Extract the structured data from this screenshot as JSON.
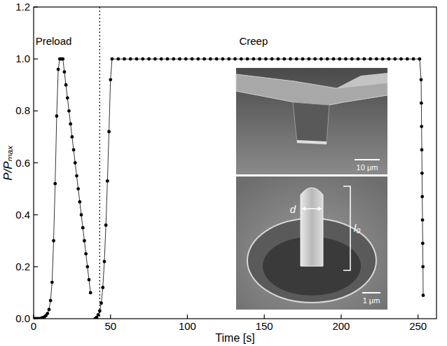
{
  "chart_data": {
    "type": "scatter",
    "x_label": "Time [s]",
    "y_label": "P/Pₘₐₓ",
    "xlim": [
      0,
      262
    ],
    "ylim": [
      0,
      1.2
    ],
    "xticks": [
      0,
      50,
      100,
      150,
      200,
      250
    ],
    "yticks": [
      {
        "value": 0,
        "label": "0.0"
      },
      0.2,
      0.4,
      0.6,
      0.8,
      {
        "value": 1,
        "label": "1.0"
      },
      1.2
    ],
    "grid": false,
    "series": [
      {
        "color": "#000000",
        "marker": "circle",
        "line_style": "solid",
        "x": [
          0,
          1,
          2,
          3,
          4,
          5,
          6,
          7,
          8,
          9,
          10,
          11,
          12,
          13,
          14,
          15,
          16,
          17,
          18,
          19,
          20,
          21,
          22,
          23,
          24,
          25,
          26,
          27,
          28,
          29,
          30,
          31,
          32,
          33,
          34,
          35,
          36,
          37
        ],
        "values": [
          0,
          0,
          0,
          0,
          0,
          0.002,
          0.004,
          0.007,
          0.012,
          0.02,
          0.035,
          0.07,
          0.14,
          0.3,
          0.52,
          0.78,
          0.96,
          1.0,
          1.0,
          1.0,
          0.95,
          0.9,
          0.85,
          0.8,
          0.75,
          0.7,
          0.65,
          0.6,
          0.55,
          0.5,
          0.45,
          0.4,
          0.35,
          0.3,
          0.25,
          0.2,
          0.15,
          0.1
        ]
      },
      {
        "color": "#000000",
        "marker": "circle",
        "line_style": "solid",
        "x": [
          40,
          41,
          42,
          43,
          44,
          45,
          46,
          47,
          48,
          49,
          50,
          51,
          55,
          59,
          63,
          67,
          71,
          75,
          79,
          83,
          87,
          91,
          95,
          99,
          103,
          107,
          111,
          115,
          119,
          123,
          127,
          131,
          135,
          139,
          143,
          147,
          151,
          155,
          159,
          163,
          167,
          171,
          175,
          179,
          183,
          187,
          191,
          195,
          199,
          203,
          207,
          211,
          215,
          219,
          223,
          227,
          231,
          235,
          239,
          243,
          247,
          251,
          252.0,
          252.15,
          252.3,
          252.45,
          252.6,
          252.75,
          252.9,
          253.05,
          253.2,
          253.35
        ],
        "values": [
          0,
          0.005,
          0.015,
          0.03,
          0.06,
          0.12,
          0.22,
          0.36,
          0.53,
          0.72,
          0.92,
          1.0,
          1.0,
          1.0,
          1.0,
          1.0,
          1.0,
          1.0,
          1.0,
          1.0,
          1.0,
          1.0,
          1.0,
          1.0,
          1.0,
          1.0,
          1.0,
          1.0,
          1.0,
          1.0,
          1.0,
          1.0,
          1.0,
          1.0,
          1.0,
          1.0,
          1.0,
          1.0,
          1.0,
          1.0,
          1.0,
          1.0,
          1.0,
          1.0,
          1.0,
          1.0,
          1.0,
          1.0,
          1.0,
          1.0,
          1.0,
          1.0,
          1.0,
          1.0,
          1.0,
          1.0,
          1.0,
          1.0,
          1.0,
          1.0,
          1.0,
          1.0,
          0.92,
          0.83,
          0.74,
          0.65,
          0.56,
          0.47,
          0.38,
          0.29,
          0.2,
          0.09
        ]
      }
    ],
    "vline": {
      "x": 43,
      "line_style": "dotted"
    },
    "annotations": [
      {
        "text": "Preload",
        "x": 13,
        "y": 1.07
      },
      {
        "text": "Creep",
        "x": 143,
        "y": 1.07
      }
    ],
    "insets": [
      {
        "scale_bar": "10 μm"
      },
      {
        "scale_bar": "1 μm",
        "labels": [
          "d",
          "l₀"
        ]
      }
    ]
  }
}
